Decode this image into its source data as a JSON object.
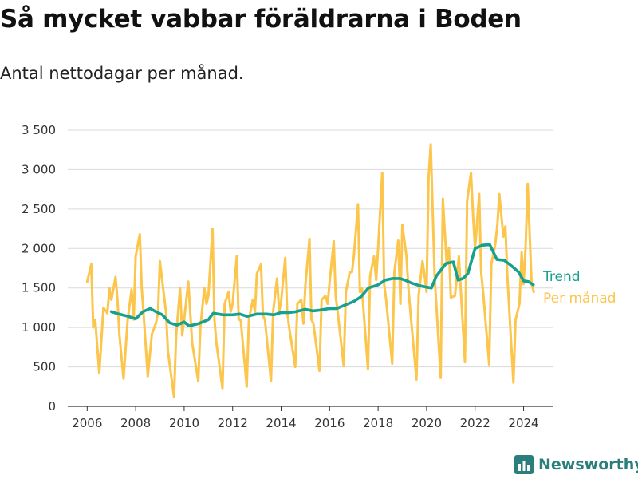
{
  "title": "Så mycket vabbar föräldrarna i Boden",
  "subtitle": "Antal nettodagar per månad.",
  "brand": "Newsworthy",
  "colors": {
    "trend": "#16a08e",
    "monthly": "#fcc54b",
    "brand": "#2a7f7d",
    "grid": "#d9d9d9"
  },
  "chart_data": {
    "type": "line",
    "title": "Så mycket vabbar föräldrarna i Boden",
    "subtitle": "Antal nettodagar per månad.",
    "xlabel": "",
    "ylabel": "",
    "xlim": [
      2005.2,
      2025.2
    ],
    "ylim": [
      0,
      3500
    ],
    "xticks": [
      2006,
      2008,
      2010,
      2012,
      2014,
      2016,
      2018,
      2020,
      2022,
      2024
    ],
    "xtick_labels": [
      "2006",
      "2008",
      "2010",
      "2012",
      "2014",
      "2016",
      "2018",
      "2020",
      "2022",
      "2024"
    ],
    "yticks": [
      0,
      500,
      1000,
      1500,
      2000,
      2500,
      3000,
      3500
    ],
    "ytick_labels": [
      "0",
      "500",
      "1 000",
      "1 500",
      "2 000",
      "2 500",
      "3 000",
      "3 500"
    ],
    "grid": "horizontal",
    "legend": "right",
    "series": [
      {
        "name": "Per månad",
        "x": [
          2006.0,
          2006.17,
          2006.25,
          2006.33,
          2006.5,
          2006.67,
          2006.83,
          2006.92,
          2007.0,
          2007.17,
          2007.25,
          2007.33,
          2007.5,
          2007.67,
          2007.83,
          2007.92,
          2008.0,
          2008.17,
          2008.25,
          2008.33,
          2008.5,
          2008.67,
          2008.83,
          2008.92,
          2009.0,
          2009.17,
          2009.25,
          2009.33,
          2009.58,
          2009.67,
          2009.83,
          2009.92,
          2010.0,
          2010.17,
          2010.25,
          2010.33,
          2010.58,
          2010.67,
          2010.83,
          2010.92,
          2011.0,
          2011.17,
          2011.25,
          2011.33,
          2011.58,
          2011.67,
          2011.83,
          2011.92,
          2012.0,
          2012.17,
          2012.25,
          2012.33,
          2012.58,
          2012.67,
          2012.83,
          2012.92,
          2013.0,
          2013.17,
          2013.25,
          2013.33,
          2013.58,
          2013.67,
          2013.83,
          2013.92,
          2014.0,
          2014.17,
          2014.25,
          2014.33,
          2014.58,
          2014.67,
          2014.83,
          2014.92,
          2015.0,
          2015.17,
          2015.25,
          2015.33,
          2015.58,
          2015.67,
          2015.83,
          2015.92,
          2016.0,
          2016.17,
          2016.25,
          2016.33,
          2016.58,
          2016.67,
          2016.83,
          2016.92,
          2017.0,
          2017.17,
          2017.25,
          2017.33,
          2017.58,
          2017.67,
          2017.83,
          2017.92,
          2018.0,
          2018.17,
          2018.25,
          2018.33,
          2018.58,
          2018.67,
          2018.83,
          2018.92,
          2019.0,
          2019.17,
          2019.25,
          2019.33,
          2019.58,
          2019.67,
          2019.83,
          2019.92,
          2020.0,
          2020.08,
          2020.17,
          2020.33,
          2020.58,
          2020.67,
          2020.83,
          2020.92,
          2021.0,
          2021.17,
          2021.25,
          2021.33,
          2021.58,
          2021.67,
          2021.83,
          2021.92,
          2022.0,
          2022.17,
          2022.25,
          2022.33,
          2022.58,
          2022.67,
          2022.83,
          2022.92,
          2023.0,
          2023.17,
          2023.25,
          2023.33,
          2023.58,
          2023.67,
          2023.83,
          2023.92,
          2024.0,
          2024.08,
          2024.17,
          2024.33,
          2024.42
        ],
        "values": [
          1580,
          1800,
          1000,
          1100,
          420,
          1250,
          1180,
          1500,
          1350,
          1640,
          1350,
          900,
          350,
          1100,
          1480,
          1100,
          1900,
          2180,
          1500,
          1150,
          380,
          920,
          1050,
          1180,
          1840,
          1400,
          1200,
          700,
          120,
          900,
          1500,
          900,
          1100,
          1580,
          1200,
          800,
          320,
          1000,
          1500,
          1300,
          1400,
          2250,
          1100,
          800,
          230,
          1300,
          1450,
          1200,
          1300,
          1900,
          1100,
          1100,
          250,
          1100,
          1350,
          1200,
          1680,
          1800,
          1150,
          1100,
          320,
          1200,
          1620,
          1200,
          1330,
          1880,
          1200,
          1000,
          500,
          1300,
          1350,
          1050,
          1530,
          2120,
          1100,
          1050,
          450,
          1350,
          1400,
          1300,
          1570,
          2090,
          1400,
          1200,
          510,
          1450,
          1700,
          1700,
          1900,
          2560,
          1450,
          1500,
          470,
          1650,
          1900,
          1600,
          2000,
          2960,
          1550,
          1350,
          540,
          1700,
          2100,
          1300,
          2300,
          1900,
          1500,
          1200,
          340,
          1400,
          1840,
          1650,
          1450,
          2900,
          3320,
          1650,
          360,
          2630,
          1800,
          2010,
          1380,
          1400,
          1650,
          1900,
          560,
          2600,
          2960,
          2400,
          2000,
          2690,
          1700,
          1450,
          530,
          1800,
          2050,
          2300,
          2690,
          2150,
          2280,
          1650,
          300,
          1100,
          1300,
          1950,
          1550,
          2000,
          2820,
          1550,
          1450
        ]
      },
      {
        "name": "Trend",
        "x": [
          2007.0,
          2007.3,
          2007.7,
          2008.0,
          2008.3,
          2008.6,
          2008.9,
          2009.1,
          2009.4,
          2009.7,
          2010.0,
          2010.2,
          2010.6,
          2011.0,
          2011.2,
          2011.6,
          2012.0,
          2012.3,
          2012.6,
          2013.0,
          2013.4,
          2013.7,
          2014.0,
          2014.3,
          2014.6,
          2015.0,
          2015.3,
          2015.6,
          2016.0,
          2016.3,
          2016.6,
          2017.0,
          2017.3,
          2017.6,
          2018.0,
          2018.3,
          2018.6,
          2018.9,
          2019.1,
          2019.4,
          2019.7,
          2020.0,
          2020.2,
          2020.4,
          2020.6,
          2020.8,
          2021.1,
          2021.3,
          2021.5,
          2021.7,
          2022.0,
          2022.3,
          2022.6,
          2022.9,
          2023.2,
          2023.5,
          2023.8,
          2024.0,
          2024.2,
          2024.4
        ],
        "values": [
          1200,
          1170,
          1140,
          1110,
          1200,
          1240,
          1190,
          1160,
          1060,
          1030,
          1070,
          1020,
          1050,
          1100,
          1180,
          1160,
          1160,
          1170,
          1140,
          1170,
          1170,
          1160,
          1190,
          1190,
          1200,
          1230,
          1210,
          1220,
          1240,
          1240,
          1280,
          1330,
          1390,
          1500,
          1540,
          1600,
          1620,
          1620,
          1600,
          1560,
          1530,
          1510,
          1500,
          1650,
          1730,
          1810,
          1830,
          1600,
          1620,
          1680,
          2000,
          2040,
          2050,
          1860,
          1850,
          1780,
          1700,
          1590,
          1580,
          1540
        ]
      }
    ]
  }
}
